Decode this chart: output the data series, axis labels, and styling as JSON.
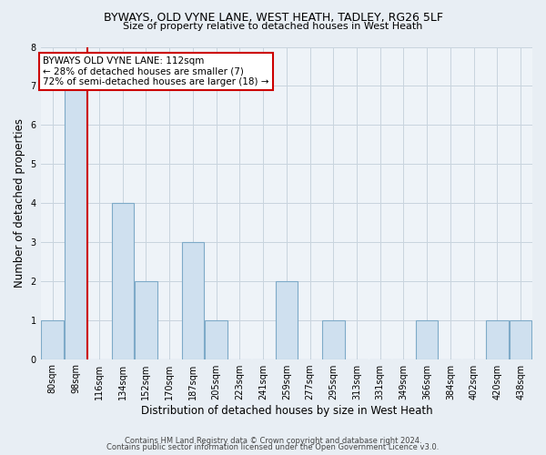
{
  "title1": "BYWAYS, OLD VYNE LANE, WEST HEATH, TADLEY, RG26 5LF",
  "title2": "Size of property relative to detached houses in West Heath",
  "xlabel": "Distribution of detached houses by size in West Heath",
  "ylabel": "Number of detached properties",
  "bar_labels": [
    "80sqm",
    "98sqm",
    "116sqm",
    "134sqm",
    "152sqm",
    "170sqm",
    "187sqm",
    "205sqm",
    "223sqm",
    "241sqm",
    "259sqm",
    "277sqm",
    "295sqm",
    "313sqm",
    "331sqm",
    "349sqm",
    "366sqm",
    "384sqm",
    "402sqm",
    "420sqm",
    "438sqm"
  ],
  "bar_values": [
    1,
    7,
    0,
    4,
    2,
    0,
    3,
    1,
    0,
    0,
    2,
    0,
    1,
    0,
    0,
    0,
    1,
    0,
    0,
    1,
    1
  ],
  "bar_color": "#cfe0ef",
  "bar_edge_color": "#7eaac8",
  "property_line_color": "#cc0000",
  "ylim": [
    0,
    8
  ],
  "yticks": [
    0,
    1,
    2,
    3,
    4,
    5,
    6,
    7,
    8
  ],
  "annotation_text": "BYWAYS OLD VYNE LANE: 112sqm\n← 28% of detached houses are smaller (7)\n72% of semi-detached houses are larger (18) →",
  "annotation_box_color": "#ffffff",
  "annotation_box_edge": "#cc0000",
  "footer1": "Contains HM Land Registry data © Crown copyright and database right 2024.",
  "footer2": "Contains public sector information licensed under the Open Government Licence v3.0.",
  "bg_color": "#e8eef4",
  "plot_bg_color": "#eef3f8",
  "grid_color": "#c8d4de"
}
